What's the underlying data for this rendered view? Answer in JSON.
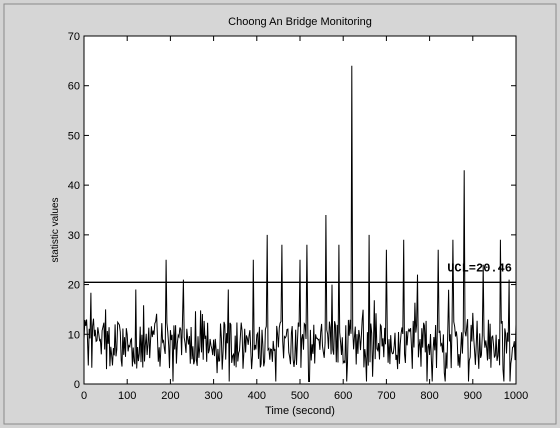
{
  "chart_data": {
    "type": "line",
    "title": "Choong An Bridge Monitoring",
    "xlabel": "Time (second)",
    "ylabel": "statistic values",
    "xlim": [
      0,
      1000
    ],
    "ylim": [
      0,
      70
    ],
    "xticks": [
      "0",
      "100",
      "200",
      "300",
      "400",
      "500",
      "600",
      "700",
      "800",
      "900",
      "1000"
    ],
    "yticks": [
      "0",
      "10",
      "20",
      "30",
      "40",
      "50",
      "60",
      "70"
    ],
    "grid": false,
    "ucl": {
      "value": 20.46,
      "label": "UCL=20.46"
    },
    "series": [
      {
        "color": "#000000",
        "summary": "noisy monitoring statistic fluctuating mostly between 0 and 25 over 0-1000 s",
        "peaks": [
          {
            "x": 50,
            "y": 15
          },
          {
            "x": 120,
            "y": 19
          },
          {
            "x": 190,
            "y": 25
          },
          {
            "x": 230,
            "y": 21
          },
          {
            "x": 335,
            "y": 19
          },
          {
            "x": 392,
            "y": 25
          },
          {
            "x": 425,
            "y": 30
          },
          {
            "x": 458,
            "y": 28
          },
          {
            "x": 500,
            "y": 25
          },
          {
            "x": 517,
            "y": 28
          },
          {
            "x": 560,
            "y": 34
          },
          {
            "x": 590,
            "y": 28
          },
          {
            "x": 620,
            "y": 64
          },
          {
            "x": 660,
            "y": 30
          },
          {
            "x": 700,
            "y": 27
          },
          {
            "x": 740,
            "y": 29
          },
          {
            "x": 772,
            "y": 22
          },
          {
            "x": 820,
            "y": 27
          },
          {
            "x": 855,
            "y": 29
          },
          {
            "x": 880,
            "y": 43
          },
          {
            "x": 925,
            "y": 24
          },
          {
            "x": 965,
            "y": 29
          },
          {
            "x": 985,
            "y": 21
          },
          {
            "x": 1000,
            "y": 12
          }
        ]
      }
    ]
  }
}
